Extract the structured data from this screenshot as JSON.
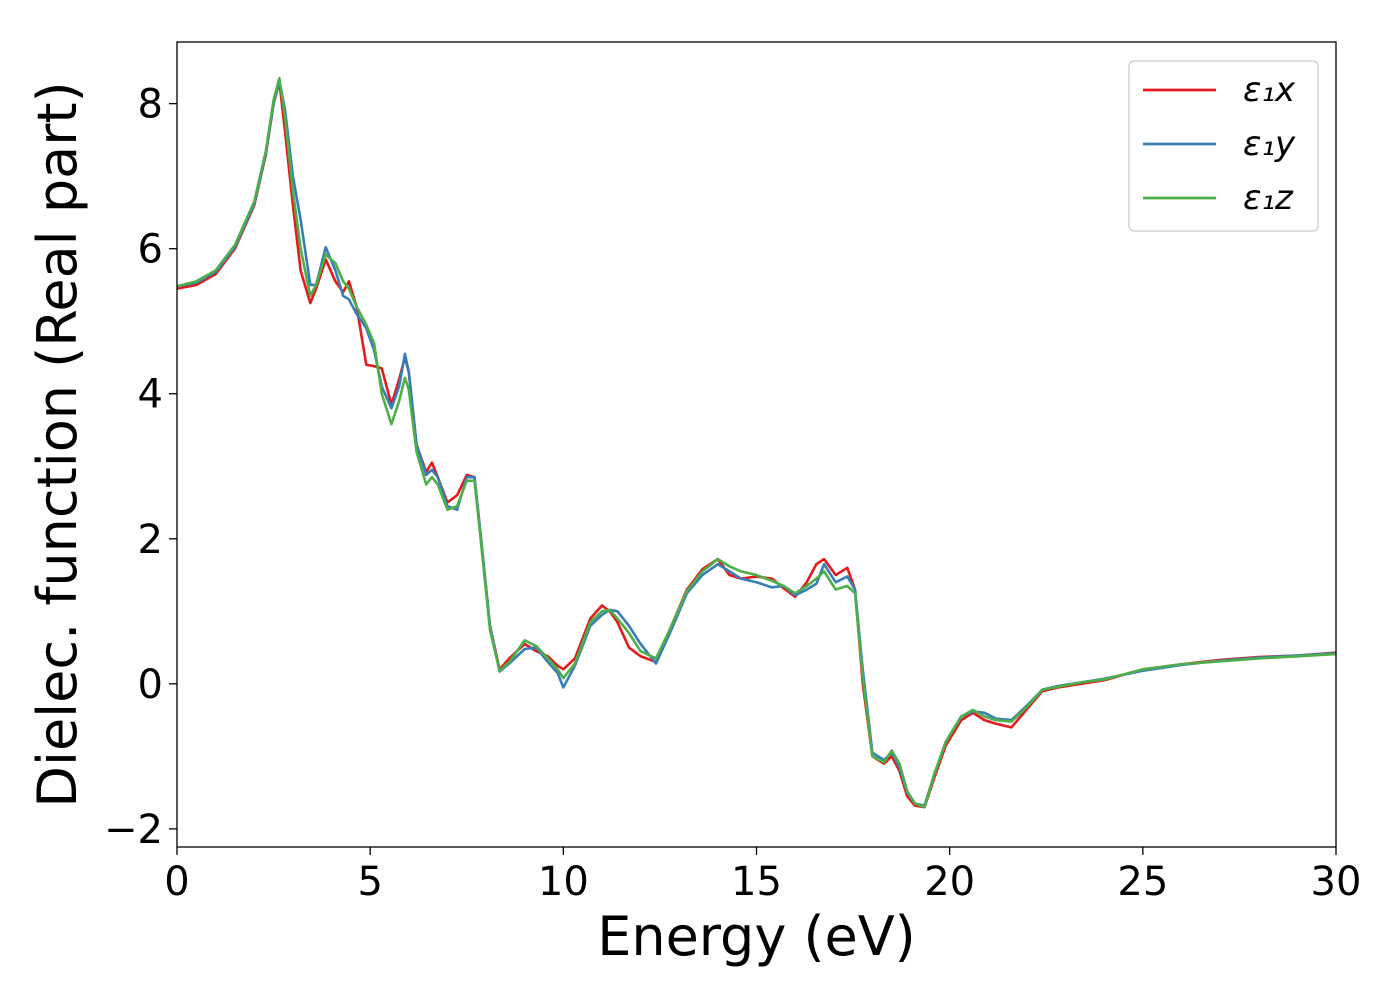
{
  "chart_data": {
    "type": "line",
    "title": "",
    "xlabel": "Energy (eV)",
    "ylabel": "Dielec. function (Real part)",
    "xlim": [
      0,
      30
    ],
    "ylim": [
      -2.25,
      8.85
    ],
    "xticks": [
      0,
      5,
      10,
      15,
      20,
      25,
      30
    ],
    "yticks": [
      -2,
      0,
      2,
      4,
      6,
      8
    ],
    "xtick_labels": [
      "0",
      "5",
      "10",
      "15",
      "20",
      "25",
      "30"
    ],
    "ytick_labels": [
      "−2",
      "0",
      "2",
      "4",
      "6",
      "8"
    ],
    "grid": false,
    "legend_position": "top-right",
    "series": [
      {
        "name": "ε₁x",
        "color": "#e41a1c",
        "x": [
          0,
          0.5,
          1.0,
          1.5,
          2.0,
          2.3,
          2.5,
          2.65,
          2.8,
          3.0,
          3.2,
          3.45,
          3.6,
          3.85,
          4.1,
          4.3,
          4.45,
          4.65,
          4.9,
          5.1,
          5.3,
          5.55,
          5.75,
          5.9,
          6.0,
          6.2,
          6.45,
          6.6,
          6.75,
          7.0,
          7.25,
          7.5,
          7.7,
          7.85,
          8.1,
          8.35,
          8.6,
          9.0,
          9.3,
          9.6,
          9.85,
          10.0,
          10.3,
          10.7,
          11.0,
          11.2,
          11.4,
          11.7,
          12.0,
          12.4,
          12.8,
          13.2,
          13.6,
          14.0,
          14.3,
          14.6,
          15.0,
          15.4,
          15.7,
          16.0,
          16.3,
          16.55,
          16.75,
          17.05,
          17.35,
          17.55,
          17.75,
          18.0,
          18.3,
          18.5,
          18.7,
          18.9,
          19.1,
          19.35,
          19.6,
          19.9,
          20.3,
          20.6,
          20.9,
          21.2,
          21.6,
          22.0,
          22.4,
          22.8,
          23.4,
          24.0,
          25.0,
          26.0,
          27.0,
          28.0,
          29.0,
          30.0
        ],
        "y": [
          5.45,
          5.5,
          5.65,
          6.0,
          6.6,
          7.3,
          8.0,
          8.3,
          7.6,
          6.6,
          5.7,
          5.25,
          5.45,
          5.85,
          5.55,
          5.4,
          5.55,
          5.2,
          4.4,
          4.38,
          4.35,
          3.85,
          4.2,
          4.5,
          4.3,
          3.3,
          2.92,
          3.05,
          2.85,
          2.5,
          2.6,
          2.88,
          2.85,
          2.1,
          0.8,
          0.2,
          0.35,
          0.55,
          0.45,
          0.38,
          0.25,
          0.2,
          0.35,
          0.9,
          1.08,
          1.0,
          0.85,
          0.5,
          0.38,
          0.3,
          0.8,
          1.3,
          1.58,
          1.72,
          1.5,
          1.45,
          1.48,
          1.45,
          1.32,
          1.2,
          1.4,
          1.65,
          1.72,
          1.5,
          1.6,
          1.3,
          0.0,
          -1.0,
          -1.1,
          -1.0,
          -1.2,
          -1.55,
          -1.68,
          -1.7,
          -1.3,
          -0.85,
          -0.5,
          -0.4,
          -0.5,
          -0.55,
          -0.6,
          -0.35,
          -0.1,
          -0.05,
          0.0,
          0.05,
          0.2,
          0.27,
          0.33,
          0.37,
          0.39,
          0.43
        ]
      },
      {
        "name": "ε₁y",
        "color": "#377eb8",
        "x": [
          0,
          0.5,
          1.0,
          1.5,
          2.0,
          2.3,
          2.5,
          2.65,
          2.8,
          3.0,
          3.2,
          3.45,
          3.6,
          3.85,
          4.1,
          4.3,
          4.45,
          4.65,
          4.9,
          5.1,
          5.3,
          5.55,
          5.75,
          5.9,
          6.0,
          6.2,
          6.45,
          6.6,
          6.75,
          7.0,
          7.25,
          7.5,
          7.7,
          7.85,
          8.1,
          8.35,
          8.6,
          9.0,
          9.3,
          9.6,
          9.85,
          10.0,
          10.3,
          10.7,
          11.0,
          11.2,
          11.4,
          11.7,
          12.0,
          12.4,
          12.8,
          13.2,
          13.6,
          14.0,
          14.3,
          14.6,
          15.0,
          15.4,
          15.7,
          16.0,
          16.3,
          16.55,
          16.75,
          17.05,
          17.35,
          17.55,
          17.75,
          18.0,
          18.3,
          18.5,
          18.7,
          18.9,
          19.1,
          19.35,
          19.6,
          19.9,
          20.3,
          20.6,
          20.9,
          21.2,
          21.6,
          22.0,
          22.4,
          22.8,
          23.4,
          24.0,
          25.0,
          26.0,
          27.0,
          28.0,
          29.0,
          30.0
        ],
        "y": [
          5.48,
          5.53,
          5.68,
          6.02,
          6.62,
          7.32,
          8.0,
          8.32,
          7.9,
          7.0,
          6.4,
          5.5,
          5.5,
          6.02,
          5.7,
          5.35,
          5.3,
          5.1,
          4.9,
          4.6,
          4.1,
          3.8,
          4.1,
          4.55,
          4.3,
          3.3,
          2.88,
          2.95,
          2.85,
          2.45,
          2.4,
          2.85,
          2.85,
          2.1,
          0.8,
          0.17,
          0.28,
          0.48,
          0.5,
          0.3,
          0.15,
          -0.05,
          0.25,
          0.8,
          0.95,
          1.02,
          1.0,
          0.8,
          0.55,
          0.28,
          0.75,
          1.25,
          1.5,
          1.65,
          1.55,
          1.45,
          1.4,
          1.33,
          1.35,
          1.22,
          1.3,
          1.38,
          1.65,
          1.4,
          1.48,
          1.3,
          0.2,
          -0.95,
          -1.05,
          -0.95,
          -1.15,
          -1.5,
          -1.65,
          -1.68,
          -1.25,
          -0.8,
          -0.45,
          -0.38,
          -0.4,
          -0.48,
          -0.5,
          -0.3,
          -0.08,
          -0.03,
          0.02,
          0.07,
          0.18,
          0.26,
          0.32,
          0.36,
          0.39,
          0.42
        ]
      },
      {
        "name": "ε₁z",
        "color": "#4daf4a",
        "x": [
          0,
          0.5,
          1.0,
          1.5,
          2.0,
          2.3,
          2.5,
          2.65,
          2.8,
          3.0,
          3.2,
          3.45,
          3.6,
          3.85,
          4.1,
          4.3,
          4.45,
          4.65,
          4.9,
          5.1,
          5.3,
          5.55,
          5.75,
          5.9,
          6.0,
          6.2,
          6.45,
          6.6,
          6.75,
          7.0,
          7.25,
          7.5,
          7.7,
          7.85,
          8.1,
          8.35,
          8.6,
          9.0,
          9.3,
          9.6,
          9.85,
          10.0,
          10.3,
          10.7,
          11.0,
          11.2,
          11.4,
          11.7,
          12.0,
          12.4,
          12.8,
          13.2,
          13.6,
          14.0,
          14.3,
          14.6,
          15.0,
          15.4,
          15.7,
          16.0,
          16.3,
          16.55,
          16.75,
          17.05,
          17.35,
          17.55,
          17.75,
          18.0,
          18.3,
          18.5,
          18.7,
          18.9,
          19.1,
          19.35,
          19.6,
          19.9,
          20.3,
          20.6,
          20.9,
          21.2,
          21.6,
          22.0,
          22.4,
          22.8,
          23.4,
          24.0,
          25.0,
          26.0,
          27.0,
          28.0,
          29.0,
          30.0
        ],
        "y": [
          5.48,
          5.55,
          5.7,
          6.05,
          6.65,
          7.35,
          8.05,
          8.35,
          7.8,
          6.8,
          6.0,
          5.35,
          5.5,
          5.92,
          5.8,
          5.55,
          5.45,
          5.2,
          4.95,
          4.7,
          4.0,
          3.58,
          3.9,
          4.22,
          4.05,
          3.2,
          2.75,
          2.85,
          2.75,
          2.4,
          2.45,
          2.8,
          2.8,
          2.05,
          0.75,
          0.18,
          0.3,
          0.6,
          0.52,
          0.35,
          0.2,
          0.08,
          0.28,
          0.85,
          1.0,
          1.02,
          0.9,
          0.7,
          0.45,
          0.35,
          0.8,
          1.28,
          1.55,
          1.72,
          1.62,
          1.55,
          1.5,
          1.42,
          1.35,
          1.25,
          1.35,
          1.45,
          1.55,
          1.3,
          1.35,
          1.25,
          0.1,
          -1.0,
          -1.08,
          -0.92,
          -1.1,
          -1.48,
          -1.65,
          -1.7,
          -1.25,
          -0.8,
          -0.45,
          -0.36,
          -0.45,
          -0.5,
          -0.52,
          -0.32,
          -0.08,
          -0.04,
          0.02,
          0.06,
          0.2,
          0.27,
          0.31,
          0.35,
          0.38,
          0.41
        ]
      }
    ]
  }
}
